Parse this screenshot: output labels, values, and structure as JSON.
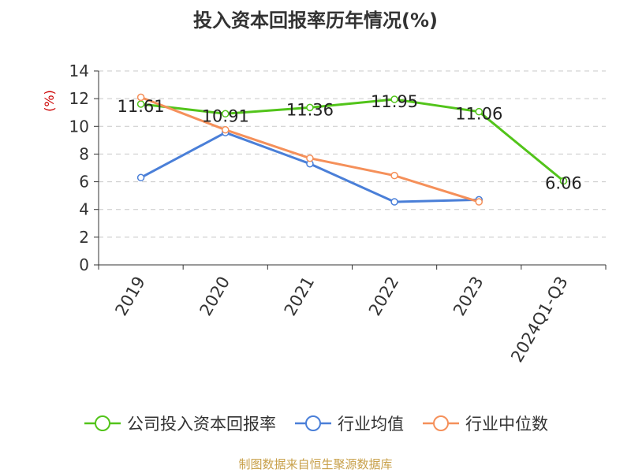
{
  "title": "投入资本回报率历年情况(%)",
  "source": "制图数据来自恒生聚源数据库",
  "chart_data": {
    "type": "line",
    "categories": [
      "2019",
      "2020",
      "2021",
      "2022",
      "2023",
      "2024Q1-Q3"
    ],
    "ylabel": "(%)",
    "ylim": [
      0,
      14
    ],
    "yticks": [
      0,
      2,
      4,
      6,
      8,
      10,
      12,
      14
    ],
    "grid": true,
    "legend_position": "bottom",
    "series": [
      {
        "name": "公司投入资本回报率",
        "color": "#52c41a",
        "values": [
          11.61,
          10.91,
          11.36,
          11.95,
          11.06,
          6.06
        ],
        "labels": [
          "11.61",
          "10.91",
          "11.36",
          "11.95",
          "11.06",
          "6.06"
        ],
        "show_labels": true
      },
      {
        "name": "行业均值",
        "color": "#4a7fd8",
        "values": [
          6.3,
          9.55,
          7.3,
          4.55,
          4.7,
          null
        ],
        "show_labels": false
      },
      {
        "name": "行业中位数",
        "color": "#f5905a",
        "values": [
          12.1,
          9.75,
          7.7,
          6.45,
          4.55,
          null
        ],
        "show_labels": false
      }
    ]
  }
}
